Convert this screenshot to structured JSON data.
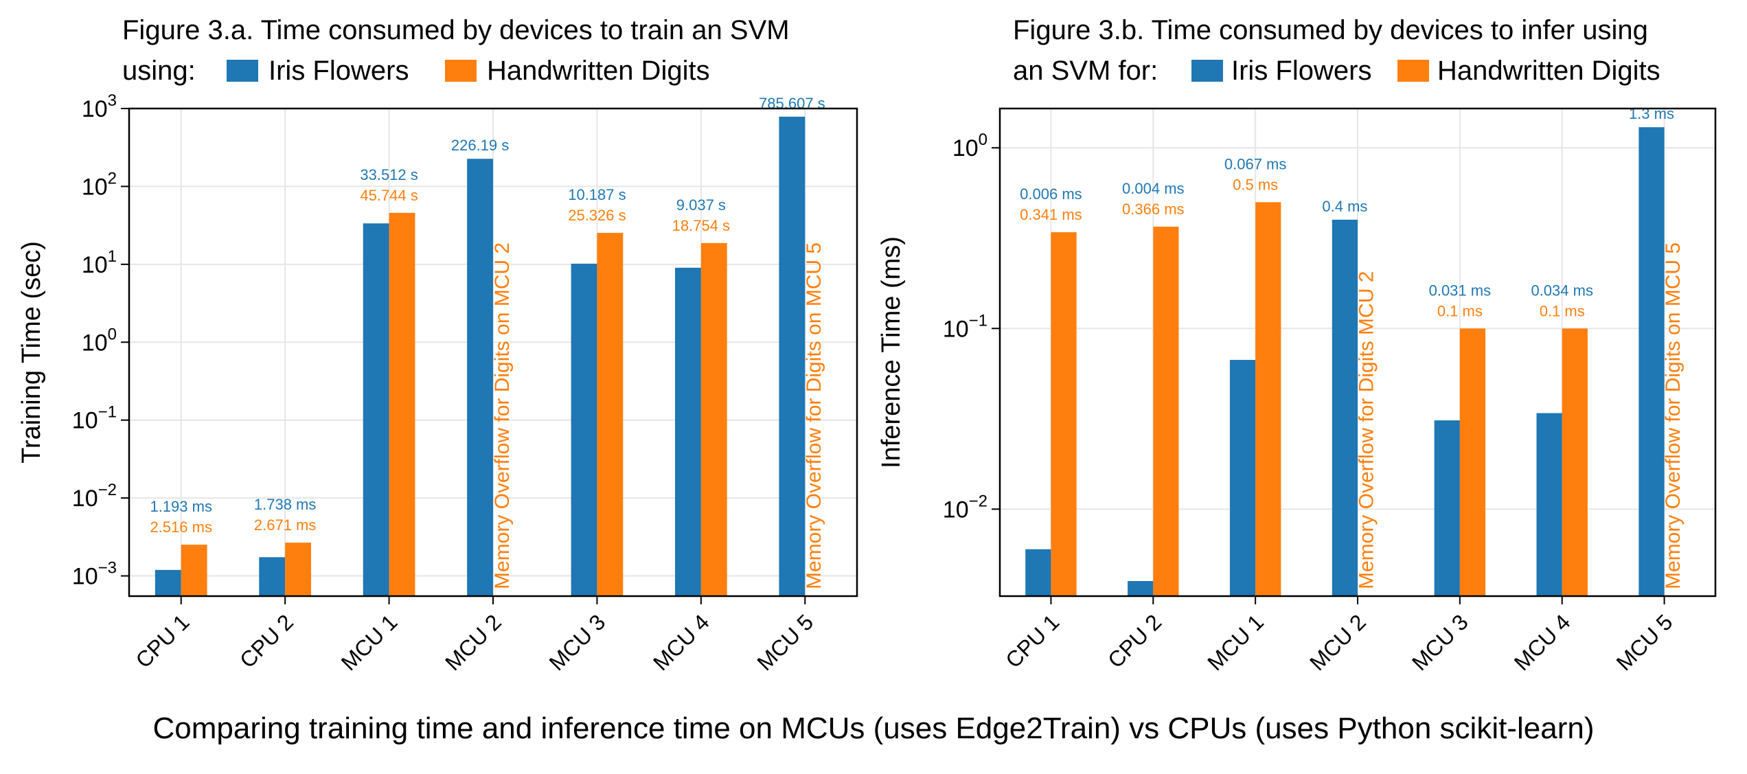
{
  "caption": "Comparing training time and inference time on MCUs (uses Edge2Train) vs CPUs (uses Python scikit-learn)",
  "colors": {
    "iris": "#1f77b4",
    "digits": "#ff7f0e",
    "grid": "#e6e6e6"
  },
  "chart_data": [
    {
      "type": "bar",
      "scale": "log",
      "title_line1": "Figure 3.a. Time consumed by devices to train an SVM",
      "title_line2": "using:",
      "ylabel": "Training Time (sec)",
      "ylim": [
        0.00055,
        1000
      ],
      "yticks": [
        {
          "value": 0.001,
          "base": "10",
          "exp": "−3"
        },
        {
          "value": 0.01,
          "base": "10",
          "exp": "−2"
        },
        {
          "value": 0.1,
          "base": "10",
          "exp": "−1"
        },
        {
          "value": 1,
          "base": "10",
          "exp": "0"
        },
        {
          "value": 10,
          "base": "10",
          "exp": "1"
        },
        {
          "value": 100,
          "base": "10",
          "exp": "2"
        },
        {
          "value": 1000,
          "base": "10",
          "exp": "3"
        }
      ],
      "categories": [
        "CPU 1",
        "CPU 2",
        "MCU 1",
        "MCU 2",
        "MCU 3",
        "MCU 4",
        "MCU 5"
      ],
      "series": [
        {
          "name": "Iris Flowers",
          "values": [
            0.001193,
            0.001738,
            33.512,
            226.19,
            10.187,
            9.037,
            785.607
          ],
          "labels": [
            "1.193 ms",
            "1.738 ms",
            "33.512 s",
            "226.19 s",
            "10.187 s",
            "9.037 s",
            "785.607 s"
          ]
        },
        {
          "name": "Handwritten Digits",
          "values": [
            0.002516,
            0.002671,
            45.744,
            null,
            25.326,
            18.754,
            null
          ],
          "labels": [
            "2.516 ms",
            "2.671 ms",
            "45.744 s",
            "",
            "25.326 s",
            "18.754 s",
            ""
          ]
        }
      ],
      "notes": [
        "",
        "",
        "",
        "Memory Overflow for Digits on MCU 2",
        "",
        "",
        "Memory Overflow for Digits on MCU 5"
      ]
    },
    {
      "type": "bar",
      "scale": "log",
      "title_line1": "Figure 3.b. Time consumed by devices to infer using",
      "title_line2": "an SVM for:",
      "ylabel": "Inference Time (ms)",
      "ylim": [
        0.0033,
        1.65
      ],
      "yticks": [
        {
          "value": 0.01,
          "base": "10",
          "exp": "−2"
        },
        {
          "value": 0.1,
          "base": "10",
          "exp": "−1"
        },
        {
          "value": 1,
          "base": "10",
          "exp": "0"
        }
      ],
      "categories": [
        "CPU 1",
        "CPU 2",
        "MCU 1",
        "MCU 2",
        "MCU 3",
        "MCU 4",
        "MCU 5"
      ],
      "series": [
        {
          "name": "Iris Flowers",
          "values": [
            0.006,
            0.004,
            0.067,
            0.4,
            0.031,
            0.034,
            1.3
          ],
          "labels": [
            "0.006 ms",
            "0.004 ms",
            "0.067 ms",
            "0.4 ms",
            "0.031 ms",
            "0.034 ms",
            "1.3 ms"
          ]
        },
        {
          "name": "Handwritten Digits",
          "values": [
            0.341,
            0.366,
            0.5,
            null,
            0.1,
            0.1,
            null
          ],
          "labels": [
            "0.341 ms",
            "0.366 ms",
            "0.5 ms",
            "",
            "0.1 ms",
            "0.1 ms",
            ""
          ]
        }
      ],
      "notes": [
        "",
        "",
        "",
        "Memory Overflow for Digits MCU 2",
        "",
        "",
        "Memory Overflow for Digits on MCU 5"
      ]
    }
  ]
}
